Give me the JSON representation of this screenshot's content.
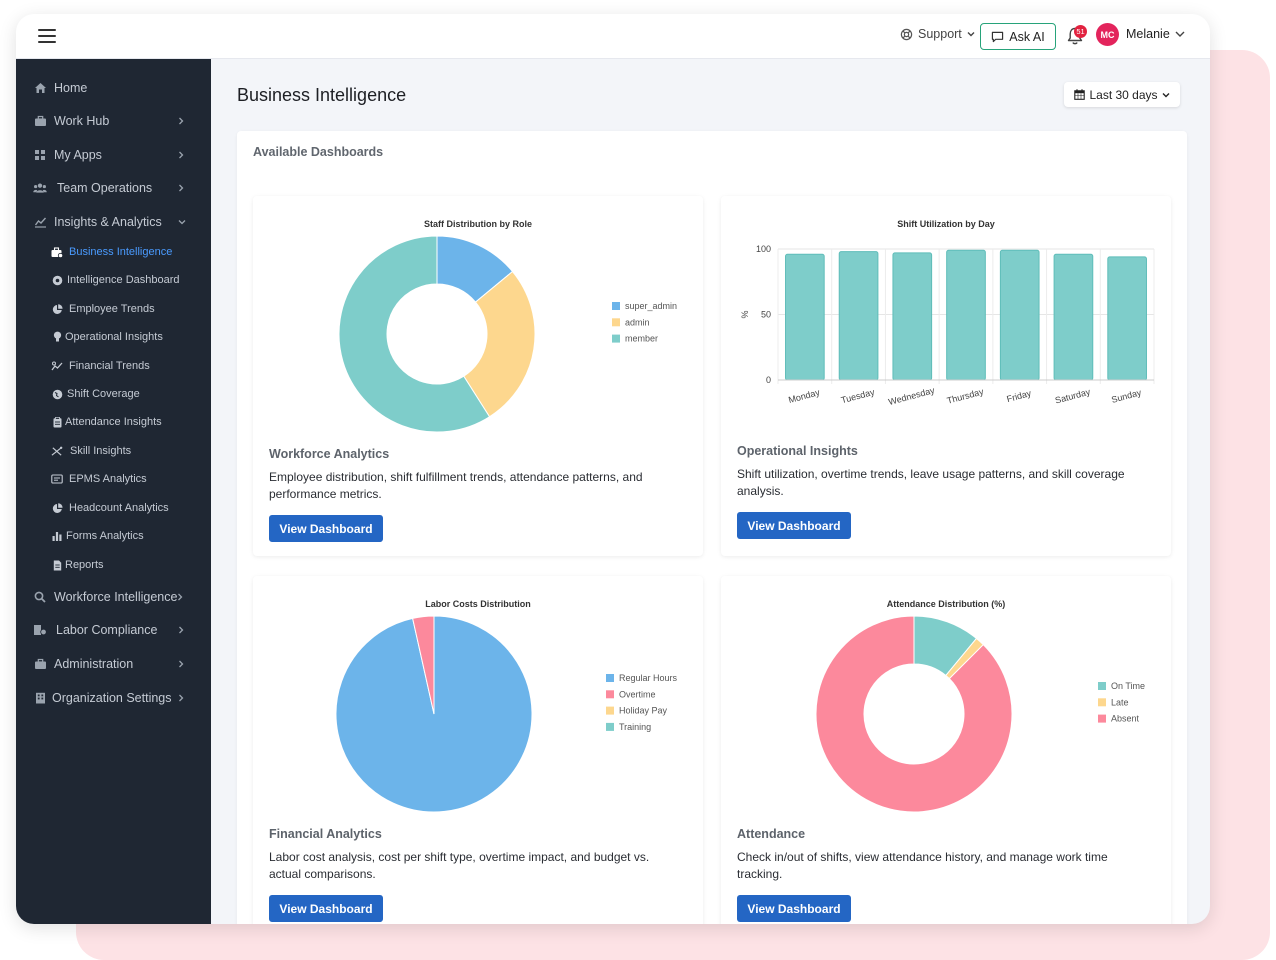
{
  "topbar": {
    "support_label": "Support",
    "ask_ai_label": "Ask AI",
    "notification_count": "51",
    "avatar_initials": "MC",
    "user_name": "Melanie"
  },
  "sidebar": {
    "items": [
      {
        "label": "Home",
        "icon": "home-icon"
      },
      {
        "label": "Work Hub",
        "icon": "briefcase-icon"
      },
      {
        "label": "My Apps",
        "icon": "apps-icon"
      },
      {
        "label": "Team Operations",
        "icon": "users-icon"
      },
      {
        "label": "Insights & Analytics",
        "icon": "analytics-icon"
      },
      {
        "label": "Workforce Intelligence",
        "icon": "search-icon"
      },
      {
        "label": "Labor Compliance",
        "icon": "compliance-icon"
      },
      {
        "label": "Administration",
        "icon": "briefcase-icon"
      },
      {
        "label": "Organization Settings",
        "icon": "building-icon"
      }
    ],
    "sub_items": [
      {
        "label": "Business Intelligence",
        "icon": "business-icon"
      },
      {
        "label": "Intelligence Dashboard",
        "icon": "dashboard-icon"
      },
      {
        "label": "Employee Trends",
        "icon": "chart-pie-icon"
      },
      {
        "label": "Operational Insights",
        "icon": "lightbulb-icon"
      },
      {
        "label": "Financial Trends",
        "icon": "money-icon"
      },
      {
        "label": "Shift Coverage",
        "icon": "globe-icon"
      },
      {
        "label": "Attendance Insights",
        "icon": "clipboard-icon"
      },
      {
        "label": "Skill Insights",
        "icon": "skill-icon"
      },
      {
        "label": "EPMS Analytics",
        "icon": "epms-icon"
      },
      {
        "label": "Headcount Analytics",
        "icon": "chart-pie-icon"
      },
      {
        "label": "Forms Analytics",
        "icon": "bar-chart-icon"
      },
      {
        "label": "Reports",
        "icon": "file-icon"
      }
    ]
  },
  "main": {
    "page_title": "Business Intelligence",
    "date_range": "Last 30 days",
    "panel_title": "Available Dashboards",
    "view_label": "View Dashboard"
  },
  "cards": [
    {
      "title": "Workforce Analytics",
      "desc": "Employee distribution, shift fulfillment trends, attendance patterns, and performance metrics."
    },
    {
      "title": "Operational Insights",
      "desc": "Shift utilization, overtime trends, leave usage patterns, and skill coverage analysis."
    },
    {
      "title": "Financial Analytics",
      "desc": "Labor cost analysis, cost per shift type, overtime impact, and budget vs. actual comparisons."
    },
    {
      "title": "Attendance",
      "desc": "Check in/out of shifts, view attendance history, and manage work time tracking."
    }
  ],
  "colors": {
    "blue": "#6cb4ea",
    "yellow": "#fdd78e",
    "teal": "#7ecdca",
    "pink": "#fc899c",
    "sidebar": "#1f2733",
    "button": "#2466c4"
  },
  "chart_data": [
    {
      "type": "pie",
      "title": "Staff Distribution by Role",
      "donut": true,
      "categories": [
        "super_admin",
        "admin",
        "member"
      ],
      "values": [
        14,
        27,
        59
      ],
      "legend": "right"
    },
    {
      "type": "bar",
      "title": "Shift Utilization by Day",
      "categories": [
        "Monday",
        "Tuesday",
        "Wednesday",
        "Thursday",
        "Friday",
        "Saturday",
        "Sunday"
      ],
      "values": [
        96,
        98,
        97,
        99,
        99,
        96,
        94
      ],
      "ylabel": "%",
      "ylim": [
        0,
        100
      ],
      "yticks": [
        "0",
        "50",
        "100"
      ]
    },
    {
      "type": "pie",
      "title": "Labor Costs Distribution",
      "donut": false,
      "categories": [
        "Regular Hours",
        "Overtime",
        "Holiday Pay",
        "Training"
      ],
      "values": [
        96.5,
        3.5,
        0,
        0
      ],
      "legend": "right"
    },
    {
      "type": "pie",
      "title": "Attendance Distribution (%)",
      "donut": true,
      "categories": [
        "On Time",
        "Late",
        "Absent"
      ],
      "values": [
        11,
        1.5,
        87.5
      ],
      "legend": "right"
    }
  ]
}
